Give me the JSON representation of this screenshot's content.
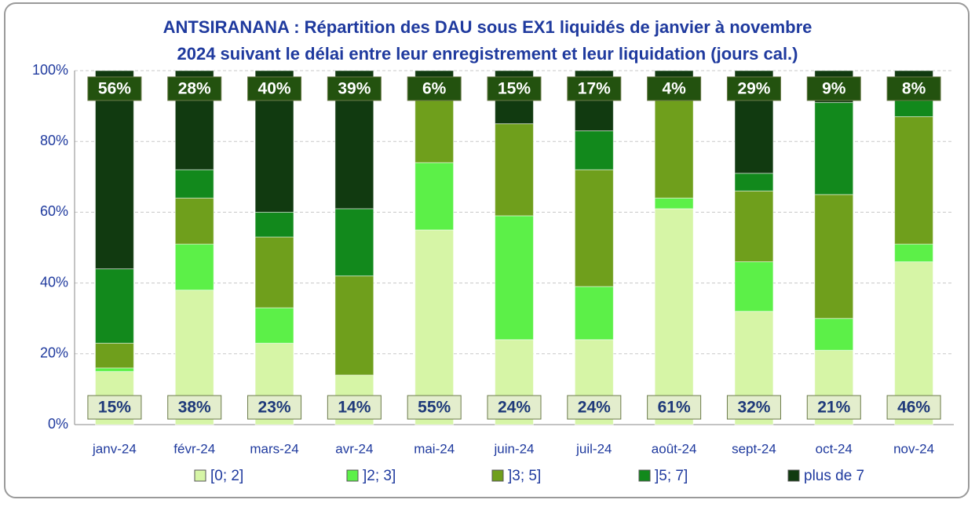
{
  "chart_data": {
    "type": "stacked_bar",
    "title": "ANTSIRANANA : Répartition des DAU sous EX1 liquidés de janvier à novembre",
    "subtitle": "2024 suivant le délai entre leur enregistrement et leur liquidation (jours cal.)",
    "categories": [
      "janv-24",
      "févr-24",
      "mars-24",
      "avr-24",
      "mai-24",
      "juin-24",
      "juil-24",
      "août-24",
      "sept-24",
      "oct-24",
      "nov-24"
    ],
    "series": [
      {
        "name": "[0; 2]",
        "color": "#d6f5a6",
        "values": [
          15,
          38,
          23,
          14,
          55,
          24,
          24,
          61,
          32,
          21,
          46
        ],
        "value_labels": [
          "15%",
          "38%",
          "23%",
          "14%",
          "55%",
          "24%",
          "24%",
          "61%",
          "32%",
          "21%",
          "46%"
        ]
      },
      {
        "name": "]2; 3]",
        "color": "#5cf048",
        "values": [
          1,
          13,
          10,
          0,
          19,
          35,
          15,
          3,
          14,
          9,
          5
        ]
      },
      {
        "name": "]3; 5]",
        "color": "#6f9f1c",
        "values": [
          7,
          13,
          20,
          28,
          19,
          26,
          33,
          32,
          20,
          35,
          36
        ]
      },
      {
        "name": "]5; 7]",
        "color": "#12891c",
        "values": [
          21,
          8,
          7,
          19,
          1,
          0,
          11,
          0,
          5,
          26,
          5
        ]
      },
      {
        "name": "plus de 7",
        "color": "#113a10",
        "values": [
          56,
          28,
          40,
          39,
          6,
          15,
          17,
          4,
          29,
          9,
          8
        ],
        "value_labels": [
          "56%",
          "28%",
          "40%",
          "39%",
          "6%",
          "15%",
          "17%",
          "4%",
          "29%",
          "9%",
          "8%"
        ]
      }
    ],
    "ylim": [
      0,
      100
    ],
    "yticks": [
      {
        "value": 0,
        "label": "0%"
      },
      {
        "value": 20,
        "label": "20%"
      },
      {
        "value": 40,
        "label": "40%"
      },
      {
        "value": 60,
        "label": "60%"
      },
      {
        "value": 80,
        "label": "80%"
      },
      {
        "value": 100,
        "label": "100%"
      }
    ],
    "grid": true,
    "legend": "bottom"
  }
}
